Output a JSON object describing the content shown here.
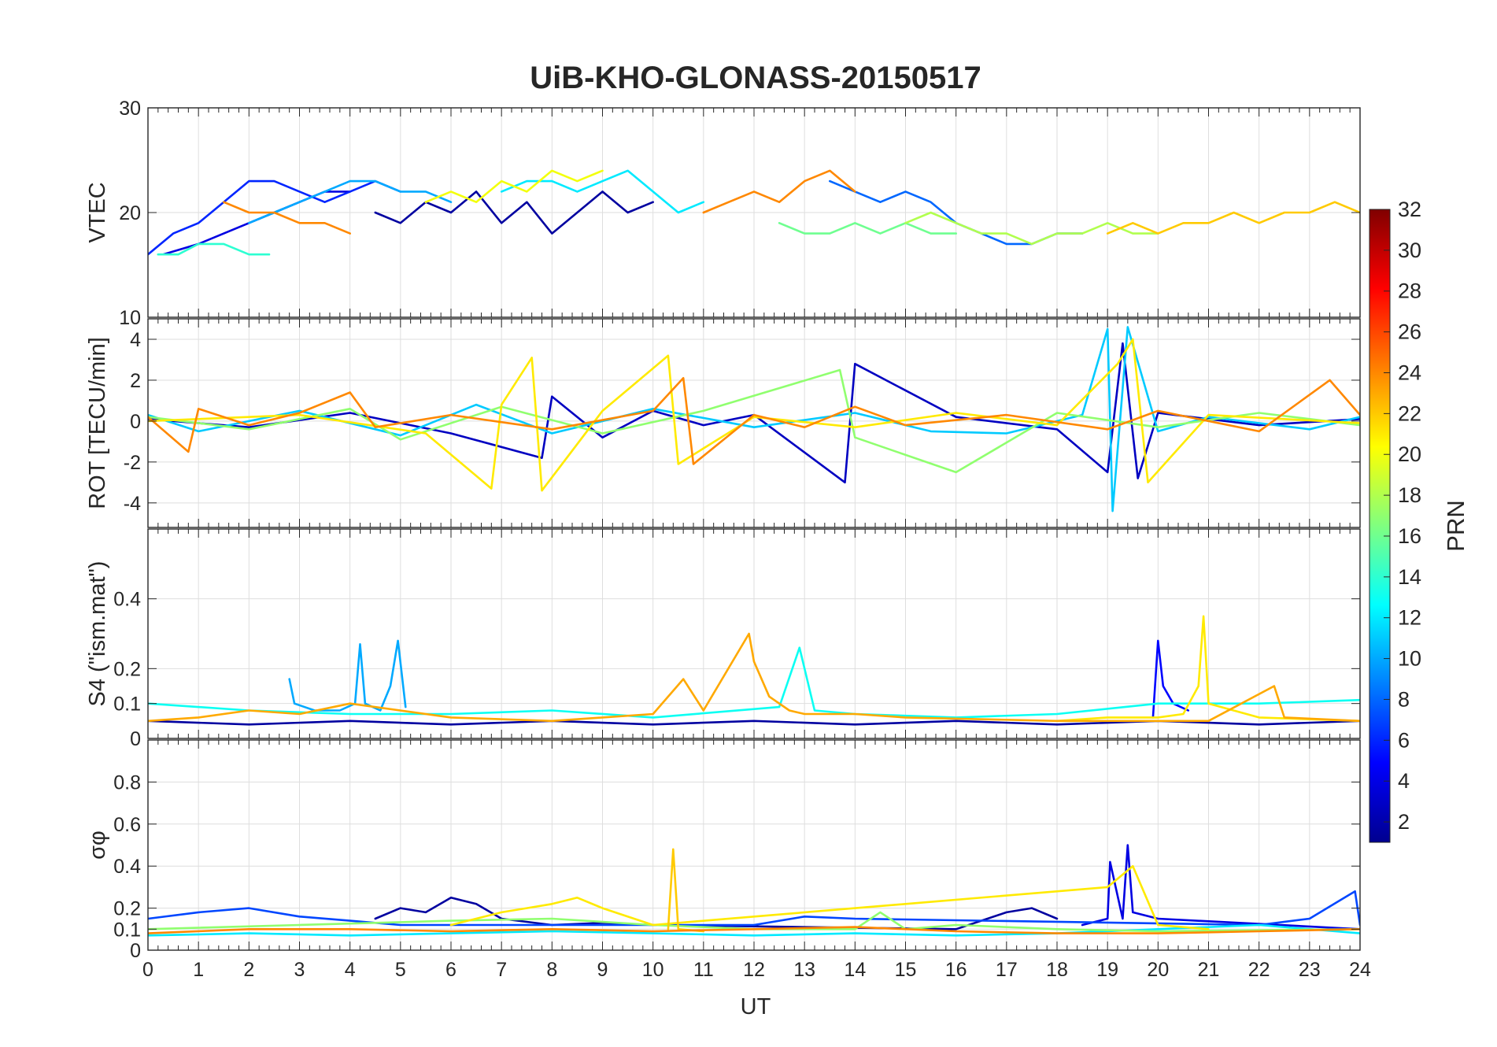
{
  "figure": {
    "title": "UiB-KHO-GLONASS-20150517",
    "xlabel": "UT",
    "colorbar": {
      "label": "PRN",
      "range": [
        1,
        32
      ],
      "ticks": [
        "2",
        "4",
        "6",
        "8",
        "10",
        "12",
        "14",
        "16",
        "18",
        "20",
        "22",
        "24",
        "26",
        "28",
        "30",
        "32"
      ],
      "colormap": "jet"
    }
  },
  "chart_data": [
    {
      "type": "line",
      "panel": "VTEC",
      "ylabel": "VTEC",
      "xlim": [
        0,
        24
      ],
      "ylim": [
        10,
        30
      ],
      "yticks": [
        "10",
        "20",
        "30"
      ],
      "xticks": [],
      "grid": true,
      "series": [
        {
          "prn": 2,
          "x": [
            4.5,
            5,
            5.5,
            6,
            6.5,
            7,
            7.5,
            8,
            8.5,
            9,
            9.5,
            10
          ],
          "y": [
            20,
            19,
            21,
            20,
            22,
            19,
            21,
            18,
            20,
            22,
            20,
            21
          ]
        },
        {
          "prn": 4,
          "x": [
            0.3,
            1,
            1.5,
            2,
            2.5,
            3,
            3.5,
            4
          ],
          "y": [
            16,
            17,
            18,
            19,
            20,
            21,
            22,
            22
          ]
        },
        {
          "prn": 6,
          "x": [
            0,
            0.5,
            1,
            1.5,
            2,
            2.5,
            3,
            3.5,
            4,
            4.5,
            5
          ],
          "y": [
            16,
            18,
            19,
            21,
            23,
            23,
            22,
            21,
            22,
            23,
            22
          ]
        },
        {
          "prn": 8,
          "x": [
            13.5,
            14,
            14.5,
            15,
            15.5,
            16,
            16.5,
            17,
            17.5,
            18,
            18.5
          ],
          "y": [
            23,
            22,
            21,
            22,
            21,
            19,
            18,
            17,
            17,
            18,
            18
          ]
        },
        {
          "prn": 10,
          "x": [
            2,
            2.5,
            3,
            3.5,
            4,
            4.5,
            5,
            5.5,
            6
          ],
          "y": [
            19,
            20,
            21,
            22,
            23,
            23,
            22,
            22,
            21
          ]
        },
        {
          "prn": 12,
          "x": [
            7,
            7.5,
            8,
            8.5,
            9,
            9.5,
            10,
            10.5,
            11
          ],
          "y": [
            22,
            23,
            23,
            22,
            23,
            24,
            22,
            20,
            21
          ]
        },
        {
          "prn": 14,
          "x": [
            0.2,
            0.6,
            1,
            1.5,
            2,
            2.4
          ],
          "y": [
            16,
            16,
            17,
            17,
            16,
            16
          ]
        },
        {
          "prn": 16,
          "x": [
            12.5,
            13,
            13.5,
            14,
            14.5,
            15,
            15.5,
            16
          ],
          "y": [
            19,
            18,
            18,
            19,
            18,
            19,
            18,
            18
          ]
        },
        {
          "prn": 18,
          "x": [
            15,
            15.5,
            16,
            16.5,
            17,
            17.5,
            18,
            18.5,
            19,
            19.5,
            20
          ],
          "y": [
            19,
            20,
            19,
            18,
            18,
            17,
            18,
            18,
            19,
            18,
            18
          ]
        },
        {
          "prn": 20,
          "x": [
            5.5,
            6,
            6.5,
            7,
            7.5,
            8,
            8.5,
            9
          ],
          "y": [
            21,
            22,
            21,
            23,
            22,
            24,
            23,
            24
          ]
        },
        {
          "prn": 22,
          "x": [
            19,
            19.5,
            20,
            20.5,
            21,
            21.5,
            22,
            22.5,
            23,
            23.5,
            24
          ],
          "y": [
            18,
            19,
            18,
            19,
            19,
            20,
            19,
            20,
            20,
            21,
            20
          ]
        },
        {
          "prn": 24,
          "x": [
            1.5,
            2,
            2.5,
            3,
            3.5,
            4
          ],
          "y": [
            21,
            20,
            20,
            19,
            19,
            18
          ]
        },
        {
          "prn": 24,
          "x": [
            11,
            11.5,
            12,
            12.5,
            13,
            13.5,
            14
          ],
          "y": [
            20,
            21,
            22,
            21,
            23,
            24,
            22
          ]
        }
      ]
    },
    {
      "type": "line",
      "panel": "ROT",
      "ylabel": "ROT [TECU/min]",
      "xlim": [
        0,
        24
      ],
      "ylim": [
        -5.2,
        5
      ],
      "yticks": [
        "-4",
        "-2",
        "0",
        "2",
        "4"
      ],
      "xticks": [],
      "grid": true,
      "series": [
        {
          "prn": 3,
          "x": [
            0,
            2,
            4,
            6,
            7.8,
            8,
            9,
            10,
            11,
            12,
            13.8,
            14,
            16,
            18,
            19,
            19.3,
            19.6,
            20,
            22,
            24
          ],
          "y": [
            0.1,
            -0.3,
            0.4,
            -0.6,
            -1.8,
            1.2,
            -0.8,
            0.5,
            -0.2,
            0.3,
            -3,
            2.8,
            0.2,
            -0.4,
            -2.5,
            3.8,
            -2.8,
            0.4,
            -0.2,
            0.1
          ]
        },
        {
          "prn": 11,
          "x": [
            0,
            1,
            3,
            5,
            6.5,
            8,
            10,
            12,
            14,
            15.5,
            17,
            18.5,
            19,
            19.1,
            19.4,
            20,
            21,
            23,
            24
          ],
          "y": [
            0.3,
            -0.5,
            0.5,
            -0.7,
            0.8,
            -0.6,
            0.6,
            -0.3,
            0.4,
            -0.5,
            -0.6,
            0.3,
            4.5,
            -4.4,
            4.6,
            -0.5,
            0.2,
            -0.4,
            0.2
          ]
        },
        {
          "prn": 17,
          "x": [
            0,
            2,
            4,
            5,
            7,
            9,
            11,
            13.7,
            14,
            16,
            18,
            20,
            22,
            24
          ],
          "y": [
            0.2,
            -0.4,
            0.6,
            -0.9,
            0.7,
            -0.6,
            0.5,
            2.5,
            -0.8,
            -2.5,
            0.4,
            -0.3,
            0.4,
            -0.2
          ]
        },
        {
          "prn": 21,
          "x": [
            0,
            3,
            5.5,
            6.8,
            7,
            7.6,
            7.8,
            9,
            10.3,
            10.5,
            12,
            14,
            16,
            18,
            19.2,
            19.5,
            19.8,
            21,
            24
          ],
          "y": [
            0,
            0.3,
            -0.6,
            -3.3,
            0.8,
            3.1,
            -3.4,
            0.5,
            3.2,
            -2.1,
            0.2,
            -0.3,
            0.4,
            -0.2,
            2.8,
            4,
            -3,
            0.3,
            -0.1
          ]
        },
        {
          "prn": 24,
          "x": [
            0,
            0.8,
            1,
            2,
            3,
            4,
            4.5,
            6,
            8,
            10,
            10.6,
            10.8,
            12,
            13,
            14,
            15,
            17,
            19,
            20,
            22,
            23.4,
            24
          ],
          "y": [
            0.2,
            -1.5,
            0.6,
            -0.2,
            0.4,
            1.4,
            -0.3,
            0.3,
            -0.4,
            0.5,
            2.1,
            -2.1,
            0.3,
            -0.3,
            0.7,
            -0.2,
            0.3,
            -0.4,
            0.5,
            -0.5,
            2,
            0.3
          ]
        }
      ]
    },
    {
      "type": "line",
      "panel": "S4",
      "ylabel": "S4 (\"ism.mat\")",
      "xlim": [
        0,
        24
      ],
      "ylim": [
        0,
        0.6
      ],
      "yticks": [
        "0",
        "0.1",
        "0.2",
        "0.4"
      ],
      "xticks": [],
      "grid": true,
      "series": [
        {
          "prn": 2,
          "x": [
            0,
            2,
            4,
            6,
            8,
            10,
            12,
            14,
            16,
            18,
            20,
            22,
            24
          ],
          "y": [
            0.05,
            0.04,
            0.05,
            0.04,
            0.05,
            0.04,
            0.05,
            0.04,
            0.05,
            0.04,
            0.05,
            0.04,
            0.05
          ]
        },
        {
          "prn": 5,
          "x": [
            19.9,
            20,
            20.1,
            20.3,
            20.6
          ],
          "y": [
            0.06,
            0.28,
            0.15,
            0.1,
            0.08
          ]
        },
        {
          "prn": 10,
          "x": [
            2.8,
            2.9,
            3.3,
            3.8,
            4.1,
            4.2,
            4.3,
            4.6,
            4.8,
            4.95,
            5.1
          ],
          "y": [
            0.17,
            0.1,
            0.08,
            0.08,
            0.1,
            0.27,
            0.1,
            0.08,
            0.15,
            0.28,
            0.09
          ]
        },
        {
          "prn": 13,
          "x": [
            0,
            2,
            4,
            6,
            8,
            10,
            12.5,
            12.9,
            13.2,
            14,
            16,
            18,
            20,
            22,
            24
          ],
          "y": [
            0.1,
            0.08,
            0.07,
            0.07,
            0.08,
            0.06,
            0.09,
            0.26,
            0.08,
            0.07,
            0.06,
            0.07,
            0.1,
            0.1,
            0.11
          ]
        },
        {
          "prn": 21,
          "x": [
            18,
            19,
            20,
            20.5,
            20.8,
            20.9,
            21,
            22,
            24
          ],
          "y": [
            0.05,
            0.06,
            0.06,
            0.07,
            0.15,
            0.35,
            0.1,
            0.06,
            0.05
          ]
        },
        {
          "prn": 23,
          "x": [
            0,
            1,
            2,
            3,
            4,
            6,
            8,
            10,
            10.6,
            11,
            11.9,
            12,
            12.3,
            12.7,
            13,
            14,
            15,
            18,
            21,
            22.3,
            22.5,
            24
          ],
          "y": [
            0.05,
            0.06,
            0.08,
            0.07,
            0.1,
            0.06,
            0.05,
            0.07,
            0.17,
            0.08,
            0.3,
            0.22,
            0.12,
            0.08,
            0.07,
            0.07,
            0.06,
            0.05,
            0.05,
            0.15,
            0.06,
            0.05
          ]
        }
      ]
    },
    {
      "type": "line",
      "panel": "sigma_phi",
      "ylabel": "σφ",
      "xlim": [
        0,
        24
      ],
      "ylim": [
        0,
        1
      ],
      "yticks": [
        "0",
        "0.1",
        "0.2",
        "0.4",
        "0.6",
        "0.8"
      ],
      "xticks": [
        "0",
        "1",
        "2",
        "3",
        "4",
        "5",
        "6",
        "7",
        "8",
        "9",
        "10",
        "11",
        "12",
        "13",
        "14",
        "15",
        "16",
        "17",
        "18",
        "19",
        "20",
        "21",
        "22",
        "23",
        "24"
      ],
      "grid": true,
      "series": [
        {
          "prn": 2,
          "x": [
            4.5,
            5,
            5.5,
            6,
            6.5,
            7,
            8,
            9,
            10,
            16,
            17,
            17.5,
            18
          ],
          "y": [
            0.15,
            0.2,
            0.18,
            0.25,
            0.22,
            0.15,
            0.12,
            0.13,
            0.12,
            0.1,
            0.18,
            0.2,
            0.15
          ]
        },
        {
          "prn": 4,
          "x": [
            18.5,
            19,
            19.05,
            19.3,
            19.4,
            19.5,
            20,
            24
          ],
          "y": [
            0.12,
            0.15,
            0.42,
            0.15,
            0.5,
            0.18,
            0.15,
            0.1
          ]
        },
        {
          "prn": 7,
          "x": [
            0,
            1,
            2,
            3,
            4,
            5,
            12,
            13,
            14,
            22,
            23,
            23.9,
            24
          ],
          "y": [
            0.15,
            0.18,
            0.2,
            0.16,
            0.14,
            0.12,
            0.12,
            0.16,
            0.15,
            0.12,
            0.15,
            0.28,
            0.12
          ]
        },
        {
          "prn": 12,
          "x": [
            0,
            2,
            4,
            6,
            8,
            10,
            12,
            14,
            16,
            18,
            20,
            22,
            24
          ],
          "y": [
            0.07,
            0.08,
            0.07,
            0.08,
            0.09,
            0.08,
            0.07,
            0.08,
            0.07,
            0.08,
            0.1,
            0.12,
            0.08
          ]
        },
        {
          "prn": 17,
          "x": [
            0,
            3,
            6,
            8,
            10,
            12,
            14,
            14.5,
            15,
            16,
            18,
            20,
            24
          ],
          "y": [
            0.1,
            0.12,
            0.14,
            0.15,
            0.12,
            0.1,
            0.1,
            0.18,
            0.1,
            0.12,
            0.1,
            0.09,
            0.1
          ]
        },
        {
          "prn": 21,
          "x": [
            6,
            7,
            7.5,
            8,
            8.5,
            9,
            10,
            19,
            19.5,
            20,
            21
          ],
          "y": [
            0.12,
            0.18,
            0.2,
            0.22,
            0.25,
            0.2,
            0.12,
            0.3,
            0.4,
            0.12,
            0.1
          ]
        },
        {
          "prn": 22,
          "x": [
            10.3,
            10.4,
            10.5,
            11
          ],
          "y": [
            0.1,
            0.48,
            0.1,
            0.09
          ]
        },
        {
          "prn": 24,
          "x": [
            0,
            2,
            4,
            6,
            8,
            10,
            12,
            14,
            16,
            18,
            20,
            22,
            24
          ],
          "y": [
            0.08,
            0.1,
            0.1,
            0.09,
            0.1,
            0.09,
            0.1,
            0.11,
            0.09,
            0.08,
            0.08,
            0.09,
            0.1
          ]
        }
      ]
    }
  ]
}
